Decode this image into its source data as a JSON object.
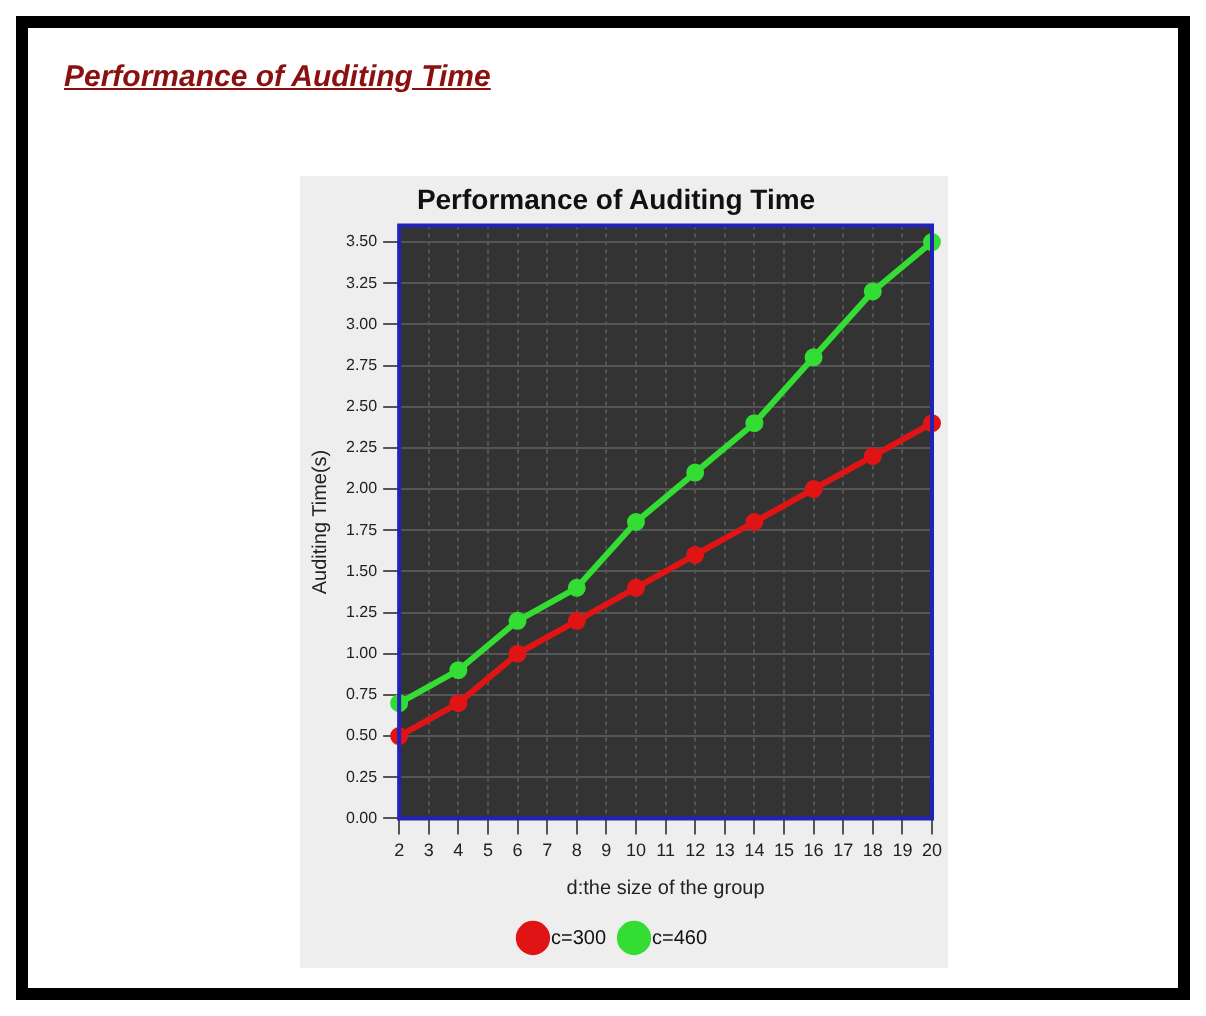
{
  "chart_data": {
    "type": "line",
    "title": "Performance of Auditing Time",
    "annotations": [
      "Performance of Auditing Time"
    ],
    "xlabel": "d:the size of the group",
    "ylabel": "Auditing Time(s)",
    "categories": [
      "2",
      "3",
      "4",
      "5",
      "6",
      "7",
      "8",
      "9",
      "10",
      "11",
      "12",
      "13",
      "14",
      "15",
      "16",
      "17",
      "18",
      "19",
      "20"
    ],
    "series": [
      {
        "name": "c=300",
        "color": "#e01414",
        "values": [
          0.5,
          null,
          0.7,
          null,
          1.0,
          null,
          1.2,
          null,
          1.4,
          null,
          1.6,
          null,
          1.8,
          null,
          2.0,
          null,
          2.2,
          null,
          2.4
        ]
      },
      {
        "name": "c=460",
        "color": "#33dd33",
        "values": [
          0.7,
          null,
          0.9,
          null,
          1.2,
          null,
          1.4,
          null,
          1.8,
          null,
          2.1,
          null,
          2.4,
          null,
          2.8,
          null,
          3.2,
          null,
          3.5
        ]
      }
    ],
    "ylim": [
      0,
      3.6
    ],
    "yticks": [
      {
        "value": 0,
        "label": "0.00"
      },
      {
        "value": 0.25,
        "label": "0.25"
      },
      {
        "value": 0.5,
        "label": "0.50"
      },
      {
        "value": 0.75,
        "label": "0.75"
      },
      {
        "value": 1,
        "label": "1.00"
      },
      {
        "value": 1.25,
        "label": "1.25"
      },
      {
        "value": 1.5,
        "label": "1.50"
      },
      {
        "value": 1.75,
        "label": "1.75"
      },
      {
        "value": 2,
        "label": "2.00"
      },
      {
        "value": 2.25,
        "label": "2.25"
      },
      {
        "value": 2.5,
        "label": "2.50"
      },
      {
        "value": 2.75,
        "label": "2.75"
      },
      {
        "value": 3,
        "label": "3.00"
      },
      {
        "value": 3.25,
        "label": "3.25"
      },
      {
        "value": 3.5,
        "label": "3.50"
      }
    ],
    "grid": true,
    "legend": "bottom",
    "marker": "circle",
    "line_style": "solid"
  }
}
